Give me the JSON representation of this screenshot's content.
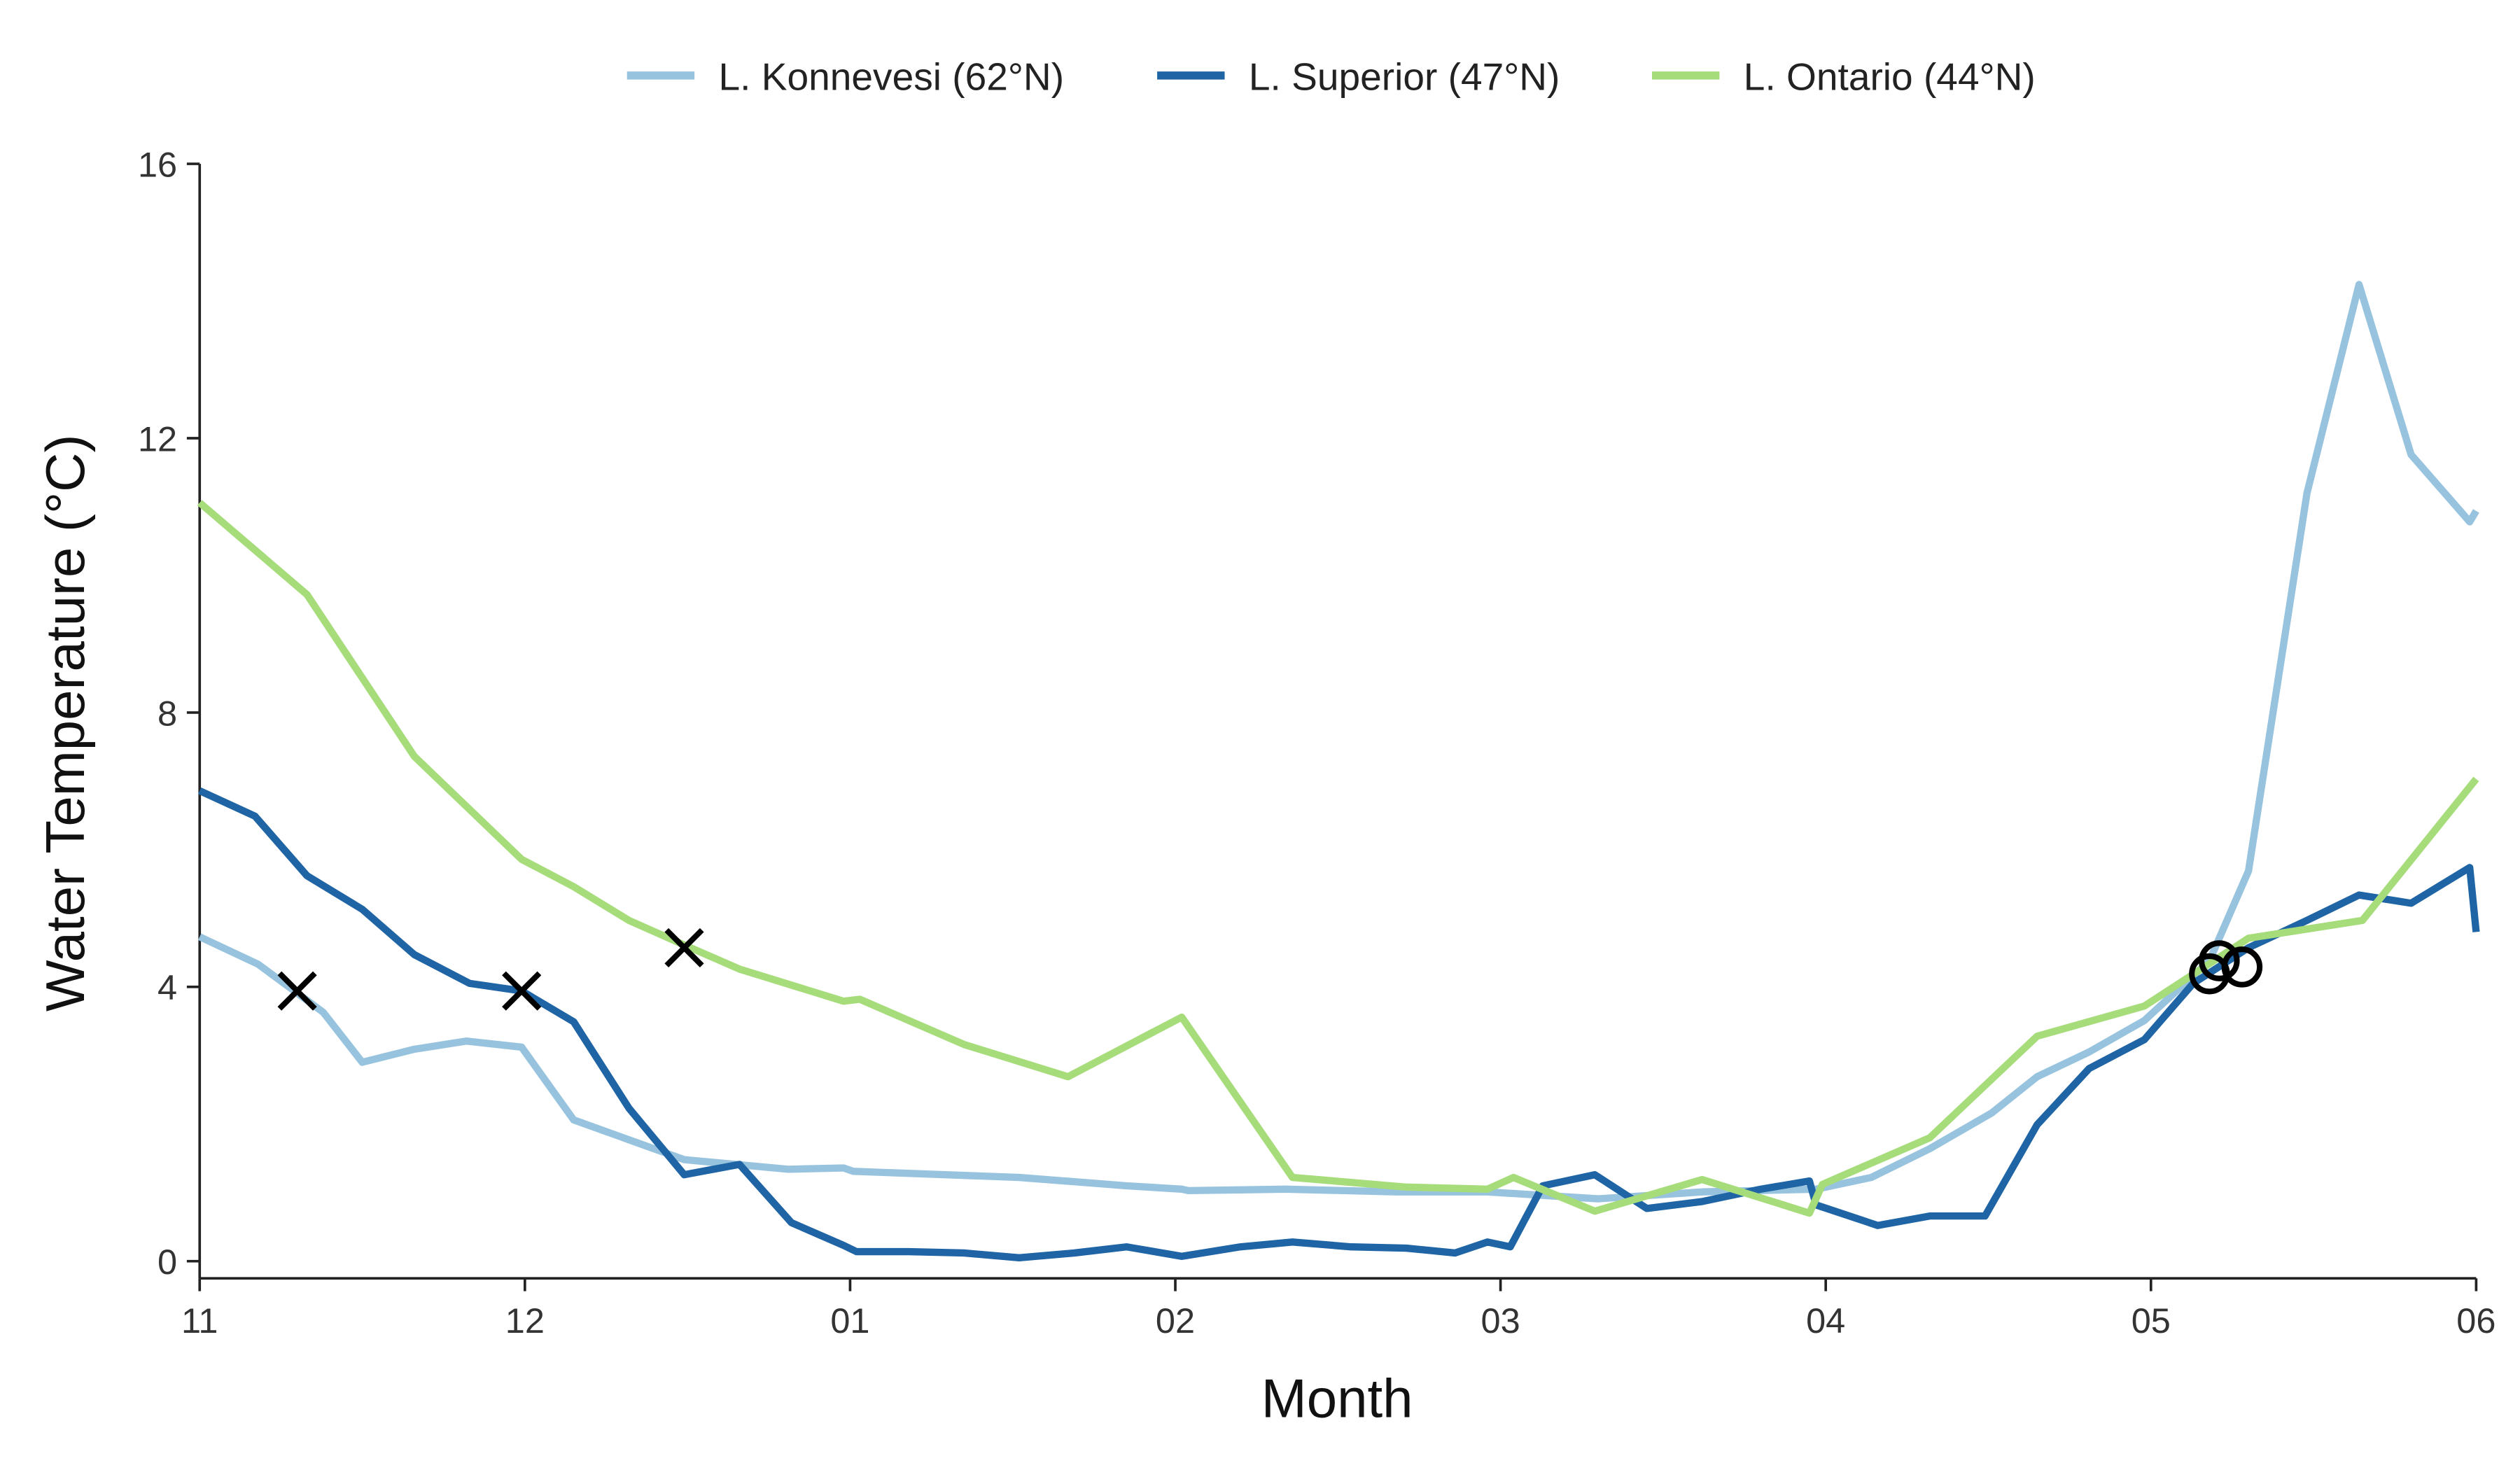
{
  "chart_data": {
    "type": "line",
    "xlabel": "Month",
    "ylabel": "Water Temperature (°C)",
    "xlim": [
      0,
      7
    ],
    "ylim": [
      -0.25,
      16
    ],
    "xticks": [
      {
        "value": 0,
        "label": "11"
      },
      {
        "value": 1,
        "label": "12"
      },
      {
        "value": 2,
        "label": "01"
      },
      {
        "value": 3,
        "label": "02"
      },
      {
        "value": 4,
        "label": "03"
      },
      {
        "value": 5,
        "label": "04"
      },
      {
        "value": 6,
        "label": "05"
      },
      {
        "value": 7,
        "label": "06"
      }
    ],
    "yticks": [
      0,
      4,
      8,
      12,
      16
    ],
    "legend": "top",
    "series": [
      {
        "name": "L. Konnevesi (62°N)",
        "color": "#97c3de",
        "x": [
          0,
          0.18,
          0.38,
          0.5,
          0.66,
          0.82,
          0.99,
          1.15,
          1.49,
          1.81,
          1.98,
          2.01,
          2.52,
          2.85,
          3.02,
          3.04,
          3.34,
          3.68,
          3.96,
          4.3,
          4.62,
          4.97,
          5.14,
          5.32,
          5.51,
          5.65,
          5.81,
          5.98,
          6.18,
          6.3,
          6.48,
          6.64,
          6.8,
          6.98,
          7.0
        ],
        "values": [
          4.73,
          4.33,
          3.63,
          2.9,
          3.09,
          3.21,
          3.12,
          2.06,
          1.48,
          1.34,
          1.36,
          1.31,
          1.22,
          1.1,
          1.05,
          1.03,
          1.05,
          1.01,
          1.01,
          0.91,
          1.01,
          1.05,
          1.22,
          1.64,
          2.16,
          2.69,
          3.05,
          3.51,
          4.38,
          5.69,
          11.2,
          14.24,
          11.76,
          10.78,
          10.94
        ]
      },
      {
        "name": "L. Superior (47°N)",
        "color": "#1f64a4",
        "x": [
          0,
          0.17,
          0.33,
          0.5,
          0.66,
          0.83,
          0.99,
          1.15,
          1.32,
          1.49,
          1.66,
          1.82,
          1.98,
          2.02,
          2.18,
          2.35,
          2.52,
          2.69,
          2.85,
          3.02,
          3.2,
          3.36,
          3.54,
          3.71,
          3.86,
          3.96,
          4.03,
          4.13,
          4.29,
          4.45,
          4.62,
          4.8,
          4.95,
          4.97,
          5.16,
          5.32,
          5.49,
          5.65,
          5.81,
          5.98,
          6.13,
          6.3,
          6.48,
          6.64,
          6.8,
          6.98,
          7.0
        ],
        "values": [
          6.86,
          6.49,
          5.62,
          5.13,
          4.47,
          4.05,
          3.94,
          3.49,
          2.23,
          1.26,
          1.41,
          0.56,
          0.23,
          0.14,
          0.14,
          0.12,
          0.05,
          0.12,
          0.21,
          0.07,
          0.21,
          0.28,
          0.21,
          0.19,
          0.12,
          0.28,
          0.21,
          1.1,
          1.26,
          0.77,
          0.87,
          1.05,
          1.17,
          0.82,
          0.52,
          0.66,
          0.66,
          1.99,
          2.81,
          3.23,
          4.05,
          4.57,
          4.97,
          5.34,
          5.22,
          5.74,
          4.8
        ]
      },
      {
        "name": "L. Ontario (44°N)",
        "color": "#a6dc7a",
        "x": [
          0,
          0.33,
          0.66,
          0.99,
          1.15,
          1.32,
          1.49,
          1.66,
          1.98,
          2.03,
          2.35,
          2.67,
          3.02,
          3.36,
          3.71,
          3.96,
          4.04,
          4.29,
          4.62,
          4.95,
          4.99,
          5.32,
          5.65,
          5.98,
          6.3,
          6.65,
          7.0
        ],
        "values": [
          11.06,
          9.72,
          7.36,
          5.86,
          5.46,
          4.97,
          4.61,
          4.26,
          3.79,
          3.82,
          3.16,
          2.69,
          3.56,
          1.22,
          1.08,
          1.05,
          1.22,
          0.73,
          1.19,
          0.7,
          1.12,
          1.8,
          3.28,
          3.72,
          4.71,
          4.97,
          7.03
        ]
      }
    ],
    "points": [
      {
        "marker": "x",
        "color": "#000000",
        "x": [
          0.3,
          0.99,
          1.49
        ],
        "values": [
          3.94,
          3.94,
          4.57
        ]
      },
      {
        "marker": "o",
        "color": "#000000",
        "x": [
          6.18,
          6.21,
          6.28
        ],
        "values": [
          4.19,
          4.38,
          4.29
        ]
      }
    ]
  }
}
